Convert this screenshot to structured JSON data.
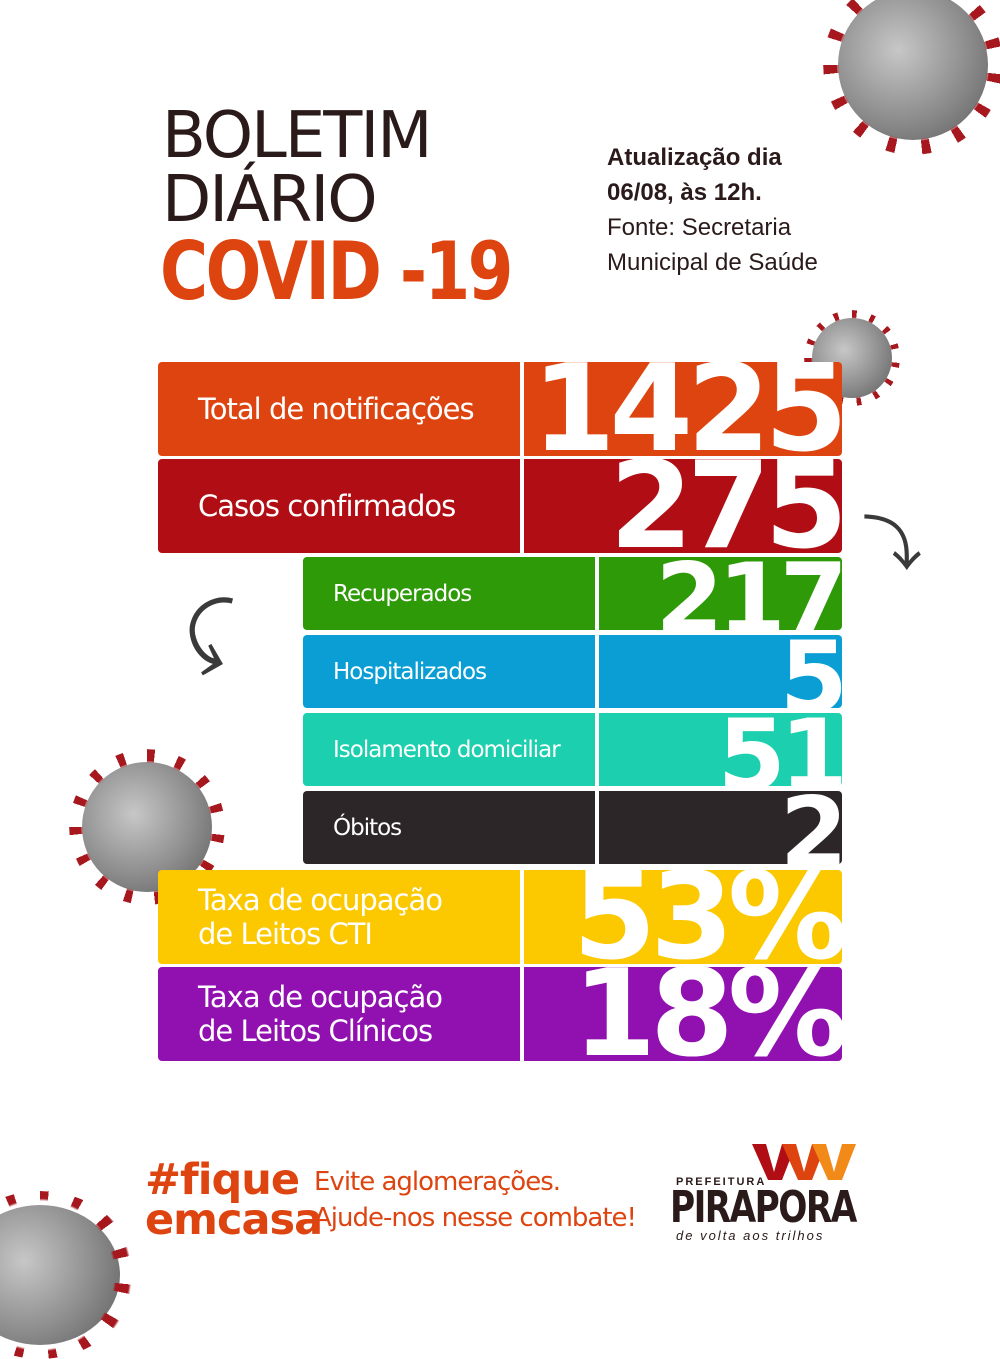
{
  "title": {
    "line1": "BOLETIM",
    "line2": "DIÁRIO",
    "line3": "COVID -19"
  },
  "update": {
    "line1": "Atualização dia",
    "line2": "06/08, às 12h.",
    "line3": "Fonte: Secretaria",
    "line4": "Municipal de Saúde"
  },
  "stats": {
    "notifications": {
      "label": "Total de notificações",
      "value": "1425",
      "color": "#de4410"
    },
    "confirmed": {
      "label": "Casos confirmados",
      "value": "275",
      "color": "#b00e14"
    },
    "recovered": {
      "label": "Recuperados",
      "value": "217",
      "color": "#2e9a08"
    },
    "hospitalized": {
      "label": "Hospitalizados",
      "value": "5",
      "color": "#0a9ed4"
    },
    "home_isolation": {
      "label": "Isolamento domiciliar",
      "value": "51",
      "color": "#1ccfae"
    },
    "deaths": {
      "label": "Óbitos",
      "value": "2",
      "color": "#2c2628"
    },
    "icu": {
      "label_line1": "Taxa de ocupação",
      "label_line2": "de Leitos CTI",
      "value": "53%",
      "color": "#fcc800"
    },
    "clinical": {
      "label_line1": "Taxa de ocupação",
      "label_line2": "de Leitos Clínicos",
      "value": "18%",
      "color": "#9010b0"
    }
  },
  "footer": {
    "hashtag_line1": "#fique",
    "hashtag_line2": "emcasa",
    "slogan_line1": "Evite aglomerações.",
    "slogan_line2": "Ajude-nos nesse combate!",
    "logo_prefix": "PREFEITURA",
    "logo_name": "PIRAPORA",
    "logo_tagline": "de volta aos trilhos"
  },
  "icons": {
    "virus": "virus-icon",
    "arrow": "curved-arrow-icon"
  }
}
